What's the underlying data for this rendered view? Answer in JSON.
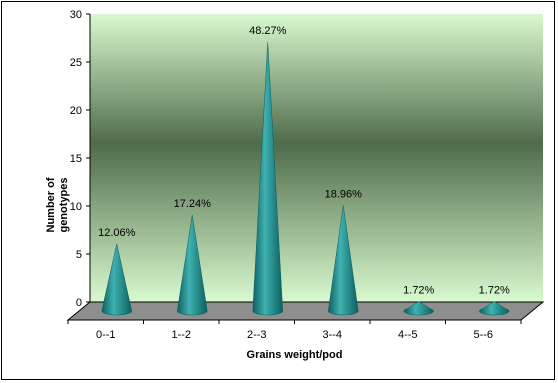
{
  "chart_data": {
    "type": "bar",
    "bar_shape": "cone",
    "categories": [
      "0--1",
      "1--2",
      "2--3",
      "3--4",
      "4--5",
      "5--6"
    ],
    "values": [
      7,
      10,
      28,
      11,
      1,
      1
    ],
    "data_labels": [
      "12.06%",
      "17.24%",
      "48.27%",
      "18.96%",
      "1.72%",
      "1.72%"
    ],
    "xlabel": "Grains weight/pod",
    "ylabel_lines": [
      "Number of",
      "genotypes"
    ],
    "ylim": [
      0,
      30
    ],
    "yticks": [
      "0",
      "5",
      "10",
      "15",
      "20",
      "25",
      "30"
    ],
    "grid": false,
    "legend": "none",
    "colors": {
      "wall_light": "#d9fad0",
      "wall_dark": "#4f6b4a",
      "floor": "#8e8e8e",
      "cone_light": "#3fb1b1",
      "cone_dark": "#0c5f5f"
    }
  }
}
